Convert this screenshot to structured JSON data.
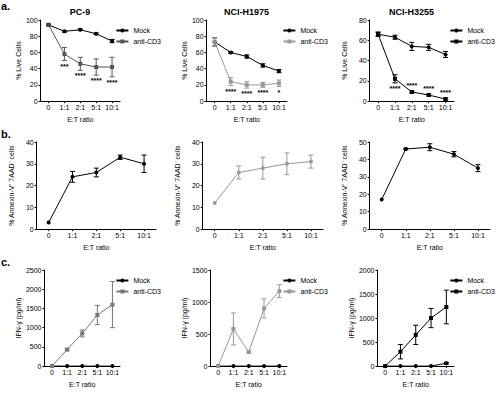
{
  "chart_data": [
    {
      "type": "line",
      "title": "PC-9",
      "annotations": [
        "a."
      ],
      "x_label": "E:T ratio",
      "y_label": "% Live Cells",
      "categories": [
        "0",
        "1:1",
        "2:1",
        "5:1",
        "10:1"
      ],
      "ylim": [
        0,
        100
      ],
      "yticks": [
        0,
        20,
        40,
        60,
        80,
        100
      ],
      "grid": false,
      "legend": "right",
      "series": [
        {
          "name": "Mock",
          "color": "#000000",
          "marker": "circle",
          "line_style": "solid",
          "values": [
            94,
            86,
            88,
            83,
            74
          ],
          "errors": [
            1,
            1,
            1,
            1,
            2
          ]
        },
        {
          "name": "anti-CD3",
          "color": "#555555",
          "marker": "square",
          "line_style": "solid",
          "values": [
            94,
            58,
            46,
            42,
            42
          ],
          "errors": [
            1,
            8,
            8,
            10,
            12
          ],
          "significance": [
            null,
            "***",
            "****",
            "****",
            "****"
          ]
        }
      ]
    },
    {
      "type": "line",
      "title": "NCI-H1975",
      "x_label": "E:T ratio",
      "y_label": "% Live Cells",
      "categories": [
        "0",
        "1:1",
        "2:1",
        "5:1",
        "10:1"
      ],
      "ylim": [
        0,
        100
      ],
      "yticks": [
        0,
        20,
        40,
        60,
        80,
        100
      ],
      "grid": false,
      "legend": "right",
      "series": [
        {
          "name": "Mock",
          "color": "#000000",
          "marker": "circle",
          "line_style": "solid",
          "values": [
            73,
            60,
            55,
            44,
            37
          ],
          "errors": [
            5,
            1,
            2,
            2,
            2
          ]
        },
        {
          "name": "anti-CD3",
          "color": "#999999",
          "marker": "square",
          "line_style": "solid",
          "values": [
            73,
            24,
            20,
            20,
            22
          ],
          "errors": [
            5,
            5,
            4,
            3,
            4
          ],
          "significance": [
            null,
            "****",
            "****",
            "****",
            "*"
          ]
        }
      ]
    },
    {
      "type": "line",
      "title": "NCI-H3255",
      "x_label": "E:T ratio",
      "y_label": "% Live Cells",
      "categories": [
        "0",
        "1:1",
        "2:1",
        "5:1",
        "10:1"
      ],
      "ylim": [
        0,
        80
      ],
      "yticks": [
        0,
        20,
        40,
        60,
        80
      ],
      "grid": false,
      "legend": "right",
      "series": [
        {
          "name": "Mock",
          "color": "#000000",
          "marker": "circle",
          "line_style": "solid",
          "values": [
            66,
            63,
            54,
            53,
            46
          ],
          "errors": [
            2,
            2,
            4,
            3,
            3
          ]
        },
        {
          "name": "anti-CD3",
          "color": "#000000",
          "marker": "square",
          "line_style": "solid",
          "values": [
            66,
            22,
            9,
            6,
            2
          ],
          "errors": [
            2,
            4,
            1,
            1,
            1
          ],
          "significance": [
            null,
            "****",
            "****",
            "****",
            "****"
          ]
        }
      ]
    },
    {
      "type": "line",
      "annotations": [
        "b."
      ],
      "x_label": "E:T ratio",
      "y_label": "% Annexin-V⁺ 7AAD⁻ cells",
      "categories": [
        "0",
        "1:1",
        "2:1",
        "5:1",
        "10:1"
      ],
      "ylim": [
        0,
        40
      ],
      "yticks": [
        0,
        10,
        20,
        30,
        40
      ],
      "grid": false,
      "series": [
        {
          "color": "#000000",
          "marker": "circle",
          "line_style": "solid",
          "values": [
            3,
            24,
            26,
            33,
            30
          ],
          "errors": [
            0,
            2.5,
            2,
            1,
            4
          ]
        }
      ]
    },
    {
      "type": "line",
      "x_label": "E:T ratio",
      "y_label": "% Annexin-V⁺ 7AAD⁻ cells",
      "categories": [
        "0",
        "1:1",
        "2:1",
        "5:1",
        "10:1"
      ],
      "ylim": [
        0,
        40
      ],
      "yticks": [
        0,
        10,
        20,
        30,
        40
      ],
      "grid": false,
      "series": [
        {
          "color": "#999999",
          "marker": "circle",
          "line_style": "solid",
          "values": [
            12,
            26,
            28,
            30,
            31
          ],
          "errors": [
            0,
            3,
            5,
            5,
            3
          ]
        }
      ]
    },
    {
      "type": "line",
      "x_label": "E:T ratio",
      "y_label": "% Annexin-V⁺ 7AAD⁻ cells",
      "categories": [
        "0",
        "1:1",
        "2:1",
        "5:1",
        "10:1"
      ],
      "ylim": [
        0,
        50
      ],
      "yticks": [
        0,
        10,
        20,
        30,
        40,
        50
      ],
      "grid": false,
      "series": [
        {
          "color": "#000000",
          "marker": "circle",
          "line_style": "solid",
          "values": [
            17,
            46,
            47,
            43,
            35
          ],
          "errors": [
            0,
            0.5,
            2,
            1.5,
            2
          ]
        }
      ]
    },
    {
      "type": "line",
      "annotations": [
        "c."
      ],
      "x_label": "E:T ratio",
      "y_label": "IFN-γ (pg/ml)",
      "categories": [
        "0",
        "1:1",
        "2:1",
        "5:1",
        "10:1"
      ],
      "ylim": [
        0,
        2500
      ],
      "yticks": [
        0,
        500,
        1000,
        1500,
        2000,
        2500
      ],
      "grid": false,
      "legend": "right",
      "series": [
        {
          "name": "Mock",
          "color": "#000000",
          "marker": "circle",
          "line_style": "solid",
          "values": [
            0,
            0,
            0,
            0,
            0
          ],
          "errors": [
            0,
            0,
            0,
            0,
            0
          ]
        },
        {
          "name": "anti-CD3",
          "color": "#777777",
          "marker": "square",
          "line_style": "solid",
          "values": [
            0,
            430,
            850,
            1330,
            1600
          ],
          "errors": [
            0,
            30,
            90,
            250,
            600
          ]
        }
      ]
    },
    {
      "type": "line",
      "x_label": "E:T ratio",
      "y_label": "IFN-γ (pg/ml)",
      "categories": [
        "0",
        "1:1",
        "2:1",
        "5:1",
        "10:1"
      ],
      "ylim": [
        0,
        1500
      ],
      "yticks": [
        0,
        500,
        1000,
        1500
      ],
      "grid": false,
      "legend": "right",
      "series": [
        {
          "name": "Mock",
          "color": "#000000",
          "marker": "circle",
          "line_style": "solid",
          "values": [
            0,
            0,
            0,
            0,
            0
          ],
          "errors": [
            0,
            0,
            0,
            0,
            0
          ]
        },
        {
          "name": "anti-CD3",
          "color": "#999999",
          "marker": "square",
          "line_style": "solid",
          "values": [
            0,
            580,
            220,
            900,
            1170
          ],
          "errors": [
            0,
            250,
            20,
            150,
            100
          ]
        }
      ]
    },
    {
      "type": "line",
      "x_label": "E:T ratio",
      "y_label": "IFN-γ (pg/ml)",
      "categories": [
        "0",
        "1:1",
        "2:1",
        "5:1",
        "10:1"
      ],
      "ylim": [
        0,
        2000
      ],
      "yticks": [
        0,
        500,
        1000,
        1500,
        2000
      ],
      "grid": false,
      "legend": "right",
      "series": [
        {
          "name": "Mock",
          "color": "#000000",
          "marker": "circle",
          "line_style": "solid",
          "values": [
            0,
            0,
            0,
            0,
            60
          ],
          "errors": [
            0,
            0,
            0,
            0,
            20
          ]
        },
        {
          "name": "anti-CD3",
          "color": "#000000",
          "marker": "square",
          "line_style": "solid",
          "values": [
            0,
            300,
            650,
            1000,
            1230
          ],
          "errors": [
            0,
            150,
            200,
            200,
            350
          ]
        }
      ]
    }
  ]
}
